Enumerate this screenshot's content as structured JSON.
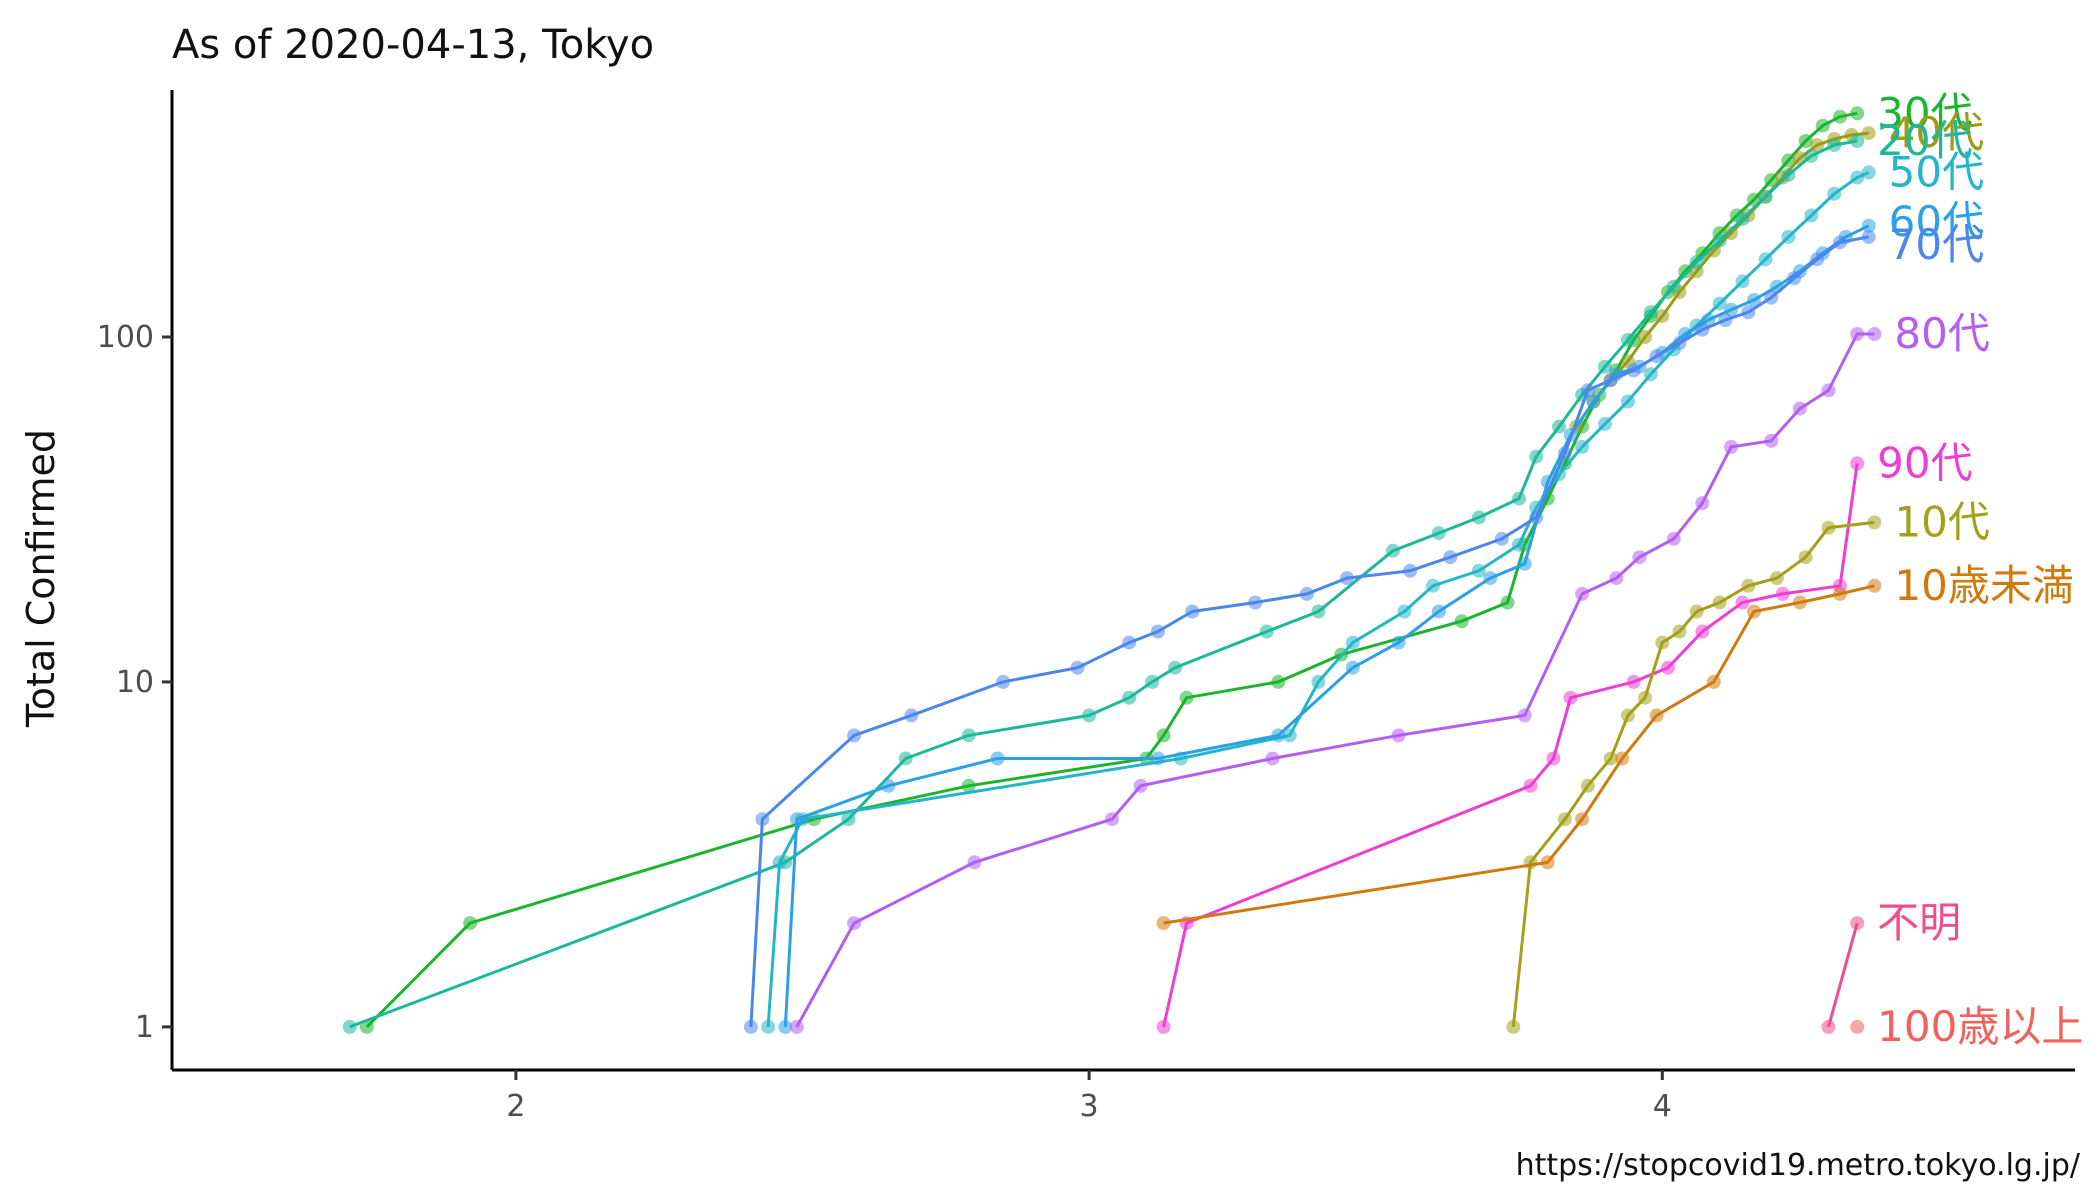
{
  "chart_data": {
    "type": "line",
    "title": "As of 2020-04-13, Tokyo",
    "xlabel": "",
    "ylabel": "Total Confirmed",
    "caption": "https://stopcovid19.metro.tokyo.lg.jp/",
    "x_scale": "log10",
    "y_scale": "log10",
    "x_ticks": [
      {
        "value": 100,
        "label": "2"
      },
      {
        "value": 1000,
        "label": "3"
      },
      {
        "value": 10000,
        "label": "4"
      }
    ],
    "y_ticks": [
      {
        "value": 1,
        "label": "1"
      },
      {
        "value": 10,
        "label": "10"
      },
      {
        "value": 100,
        "label": "100"
      }
    ],
    "xlim_log10": [
      1.4,
      4.72
    ],
    "ylim": [
      0.75,
      520
    ],
    "grid": false,
    "legend": "direct labels at line ends",
    "series": [
      {
        "name": "30代",
        "color": "#1ab52c",
        "label_offset": 0,
        "points": [
          [
            1.74,
            1
          ],
          [
            1.92,
            2
          ],
          [
            2.52,
            4
          ],
          [
            2.79,
            5
          ],
          [
            3.1,
            6
          ],
          [
            3.13,
            7
          ],
          [
            3.17,
            9
          ],
          [
            3.33,
            10
          ],
          [
            3.44,
            12
          ],
          [
            3.65,
            15
          ],
          [
            3.73,
            17
          ],
          [
            3.76,
            25
          ],
          [
            3.8,
            34
          ],
          [
            3.83,
            43
          ],
          [
            3.86,
            55
          ],
          [
            3.89,
            68
          ],
          [
            3.92,
            80
          ],
          [
            3.95,
            98
          ],
          [
            3.98,
            115
          ],
          [
            4.01,
            135
          ],
          [
            4.04,
            155
          ],
          [
            4.07,
            175
          ],
          [
            4.1,
            200
          ],
          [
            4.13,
            225
          ],
          [
            4.16,
            250
          ],
          [
            4.19,
            285
          ],
          [
            4.22,
            325
          ],
          [
            4.25,
            370
          ],
          [
            4.28,
            410
          ],
          [
            4.31,
            435
          ],
          [
            4.34,
            445
          ]
        ]
      },
      {
        "name": "40代",
        "color": "#9a9c16",
        "label_offset": 0,
        "points": [
          [
            3.85,
            55
          ],
          [
            3.88,
            65
          ],
          [
            3.91,
            75
          ],
          [
            3.94,
            85
          ],
          [
            3.97,
            100
          ],
          [
            4.0,
            115
          ],
          [
            4.03,
            135
          ],
          [
            4.06,
            155
          ],
          [
            4.09,
            178
          ],
          [
            4.12,
            200
          ],
          [
            4.15,
            225
          ],
          [
            4.18,
            255
          ],
          [
            4.21,
            290
          ],
          [
            4.24,
            330
          ],
          [
            4.27,
            360
          ],
          [
            4.3,
            375
          ],
          [
            4.33,
            385
          ],
          [
            4.36,
            390
          ]
        ]
      },
      {
        "name": "20代",
        "color": "#1cb89a",
        "label_offset": 0,
        "points": [
          [
            1.71,
            1
          ],
          [
            2.47,
            3
          ],
          [
            2.58,
            4
          ],
          [
            2.68,
            6
          ],
          [
            2.79,
            7
          ],
          [
            3.0,
            8
          ],
          [
            3.07,
            9
          ],
          [
            3.11,
            10
          ],
          [
            3.15,
            11
          ],
          [
            3.31,
            14
          ],
          [
            3.4,
            16
          ],
          [
            3.53,
            24
          ],
          [
            3.61,
            27
          ],
          [
            3.68,
            30
          ],
          [
            3.75,
            34
          ],
          [
            3.78,
            45
          ],
          [
            3.82,
            55
          ],
          [
            3.86,
            68
          ],
          [
            3.9,
            82
          ],
          [
            3.94,
            98
          ],
          [
            3.98,
            118
          ],
          [
            4.02,
            140
          ],
          [
            4.06,
            165
          ],
          [
            4.1,
            190
          ],
          [
            4.14,
            220
          ],
          [
            4.18,
            255
          ],
          [
            4.22,
            295
          ],
          [
            4.26,
            335
          ],
          [
            4.3,
            360
          ],
          [
            4.34,
            370
          ]
        ]
      },
      {
        "name": "50代",
        "color": "#23b6c9",
        "label_offset": 0,
        "points": [
          [
            2.44,
            1
          ],
          [
            2.46,
            3
          ],
          [
            2.5,
            4
          ],
          [
            3.16,
            6
          ],
          [
            3.35,
            7
          ],
          [
            3.4,
            10
          ],
          [
            3.46,
            13
          ],
          [
            3.55,
            16
          ],
          [
            3.6,
            19
          ],
          [
            3.68,
            21
          ],
          [
            3.75,
            25
          ],
          [
            3.78,
            32
          ],
          [
            3.82,
            40
          ],
          [
            3.86,
            48
          ],
          [
            3.9,
            56
          ],
          [
            3.94,
            65
          ],
          [
            3.98,
            78
          ],
          [
            4.02,
            92
          ],
          [
            4.06,
            108
          ],
          [
            4.1,
            125
          ],
          [
            4.14,
            145
          ],
          [
            4.18,
            168
          ],
          [
            4.22,
            195
          ],
          [
            4.26,
            225
          ],
          [
            4.3,
            260
          ],
          [
            4.34,
            290
          ],
          [
            4.36,
            300
          ]
        ]
      },
      {
        "name": "60代",
        "color": "#2aa0e6",
        "label_offset": -4,
        "points": [
          [
            2.47,
            1
          ],
          [
            2.49,
            4
          ],
          [
            2.65,
            5
          ],
          [
            2.84,
            6
          ],
          [
            3.12,
            6
          ],
          [
            3.33,
            7
          ],
          [
            3.46,
            11
          ],
          [
            3.54,
            13
          ],
          [
            3.61,
            16
          ],
          [
            3.7,
            20
          ],
          [
            3.76,
            22
          ],
          [
            3.8,
            38
          ],
          [
            3.84,
            52
          ],
          [
            3.88,
            65
          ],
          [
            3.92,
            78
          ],
          [
            3.96,
            82
          ],
          [
            4.0,
            90
          ],
          [
            4.04,
            102
          ],
          [
            4.08,
            112
          ],
          [
            4.12,
            120
          ],
          [
            4.16,
            128
          ],
          [
            4.2,
            140
          ],
          [
            4.24,
            155
          ],
          [
            4.28,
            175
          ],
          [
            4.32,
            195
          ],
          [
            4.36,
            210
          ]
        ]
      },
      {
        "name": "70代",
        "color": "#4a86ec",
        "label_offset": 8,
        "points": [
          [
            2.41,
            1
          ],
          [
            2.43,
            4
          ],
          [
            2.59,
            7
          ],
          [
            2.69,
            8
          ],
          [
            2.85,
            10
          ],
          [
            2.98,
            11
          ],
          [
            3.07,
            13
          ],
          [
            3.12,
            14
          ],
          [
            3.18,
            16
          ],
          [
            3.29,
            17
          ],
          [
            3.38,
            18
          ],
          [
            3.45,
            20
          ],
          [
            3.56,
            21
          ],
          [
            3.63,
            23
          ],
          [
            3.72,
            26
          ],
          [
            3.78,
            30
          ],
          [
            3.83,
            46
          ],
          [
            3.87,
            70
          ],
          [
            3.91,
            75
          ],
          [
            3.95,
            80
          ],
          [
            3.99,
            88
          ],
          [
            4.03,
            96
          ],
          [
            4.07,
            105
          ],
          [
            4.11,
            112
          ],
          [
            4.15,
            118
          ],
          [
            4.19,
            130
          ],
          [
            4.23,
            148
          ],
          [
            4.27,
            168
          ],
          [
            4.31,
            188
          ],
          [
            4.36,
            195
          ]
        ]
      },
      {
        "name": "80代",
        "color": "#b35ef2",
        "label_offset": 0,
        "points": [
          [
            2.49,
            1
          ],
          [
            2.59,
            2
          ],
          [
            2.8,
            3
          ],
          [
            3.04,
            4
          ],
          [
            3.09,
            5
          ],
          [
            3.32,
            6
          ],
          [
            3.54,
            7
          ],
          [
            3.76,
            8
          ],
          [
            3.86,
            18
          ],
          [
            3.92,
            20
          ],
          [
            3.96,
            23
          ],
          [
            4.02,
            26
          ],
          [
            4.07,
            33
          ],
          [
            4.12,
            48
          ],
          [
            4.19,
            50
          ],
          [
            4.24,
            62
          ],
          [
            4.29,
            70
          ],
          [
            4.34,
            102
          ],
          [
            4.37,
            102
          ]
        ]
      },
      {
        "name": "90代",
        "color": "#ee3cd4",
        "label_offset": 0,
        "points": [
          [
            3.13,
            1
          ],
          [
            3.17,
            2
          ],
          [
            3.77,
            5
          ],
          [
            3.81,
            6
          ],
          [
            3.84,
            9
          ],
          [
            3.95,
            10
          ],
          [
            4.01,
            11
          ],
          [
            4.07,
            14
          ],
          [
            4.14,
            17
          ],
          [
            4.21,
            18
          ],
          [
            4.31,
            19
          ],
          [
            4.34,
            43
          ]
        ]
      },
      {
        "name": "10代",
        "color": "#a3a11a",
        "label_offset": 0,
        "points": [
          [
            3.74,
            1
          ],
          [
            3.77,
            3
          ],
          [
            3.83,
            4
          ],
          [
            3.87,
            5
          ],
          [
            3.91,
            6
          ],
          [
            3.94,
            8
          ],
          [
            3.97,
            9
          ],
          [
            4.0,
            13
          ],
          [
            4.03,
            14
          ],
          [
            4.06,
            16
          ],
          [
            4.1,
            17
          ],
          [
            4.15,
            19
          ],
          [
            4.2,
            20
          ],
          [
            4.25,
            23
          ],
          [
            4.29,
            28
          ],
          [
            4.37,
            29
          ]
        ]
      },
      {
        "name": "10歳未満",
        "color": "#d17a0c",
        "label_offset": 0,
        "points": [
          [
            3.13,
            2
          ],
          [
            3.8,
            3
          ],
          [
            3.86,
            4
          ],
          [
            3.93,
            6
          ],
          [
            3.99,
            8
          ],
          [
            4.09,
            10
          ],
          [
            4.16,
            16
          ],
          [
            4.24,
            17
          ],
          [
            4.31,
            18
          ],
          [
            4.37,
            19
          ]
        ]
      },
      {
        "name": "不明",
        "color": "#f24c8c",
        "label_offset": 0,
        "points": [
          [
            4.29,
            1
          ],
          [
            4.34,
            2
          ]
        ]
      },
      {
        "name": "100歳以上",
        "color": "#f0605c",
        "label_offset": 0,
        "points": [
          [
            4.34,
            1
          ]
        ]
      }
    ]
  }
}
